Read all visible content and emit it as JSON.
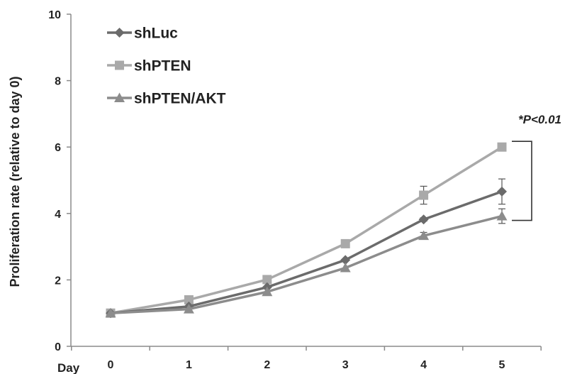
{
  "chart_data": {
    "type": "line",
    "title": "",
    "xlabel": "Day",
    "ylabel": "Proliferation rate (relative to day 0)",
    "x": [
      0,
      1,
      2,
      3,
      4,
      5
    ],
    "x_tick_labels": [
      "0",
      "1",
      "2",
      "3",
      "4",
      "5"
    ],
    "ylim": [
      0,
      10
    ],
    "y_ticks": [
      0,
      2,
      4,
      6,
      8,
      10
    ],
    "y_tick_labels": [
      "0",
      "2",
      "4",
      "6",
      "8",
      "10"
    ],
    "grid": false,
    "legend_position": "top-left",
    "series": [
      {
        "name": "shLuc",
        "values": [
          1.0,
          1.2,
          1.78,
          2.6,
          3.82,
          4.66
        ],
        "error": [
          0,
          0,
          0,
          0,
          0.05,
          0.38
        ],
        "marker": "diamond",
        "color": "#6b6b6b"
      },
      {
        "name": "shPTEN",
        "values": [
          1.0,
          1.4,
          2.01,
          3.09,
          4.55,
          6.0
        ],
        "error": [
          0,
          0,
          0,
          0,
          0.27,
          0
        ],
        "marker": "square",
        "color": "#a9a9a9"
      },
      {
        "name": "shPTEN/AKT",
        "values": [
          1.0,
          1.12,
          1.64,
          2.36,
          3.33,
          3.92
        ],
        "error": [
          0,
          0,
          0,
          0,
          0.1,
          0.22
        ],
        "marker": "triangle",
        "color": "#8c8c8c"
      }
    ],
    "annotation": "*P<0.01"
  }
}
